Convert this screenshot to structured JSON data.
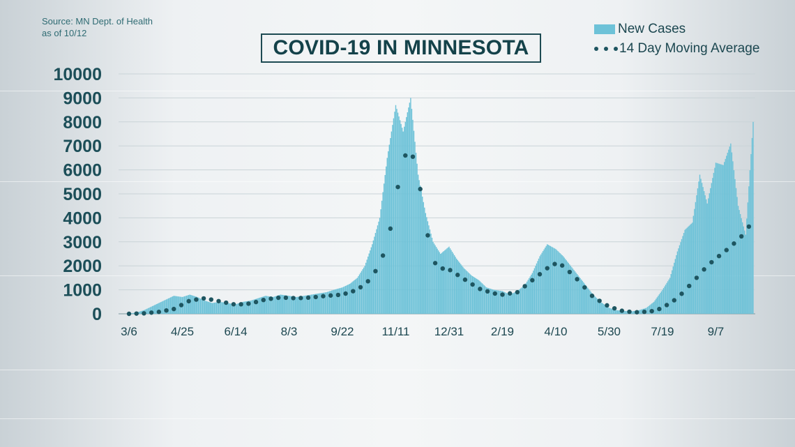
{
  "source_lines": [
    "Source: MN Dept. of Health",
    "as of 10/12"
  ],
  "chart_data": {
    "type": "bar",
    "title": "COVID-19 IN MINNESOTA",
    "xlabel": "",
    "ylabel": "",
    "ylim": [
      0,
      10000
    ],
    "yticks": [
      0,
      1000,
      2000,
      3000,
      4000,
      5000,
      6000,
      7000,
      8000,
      9000,
      10000
    ],
    "xtick_labels": [
      "3/6",
      "4/25",
      "6/14",
      "8/3",
      "9/22",
      "11/11",
      "12/31",
      "2/19",
      "4/10",
      "5/30",
      "7/19",
      "9/7"
    ],
    "grid": true,
    "legend_position": "top-right",
    "series": [
      {
        "name": "New Cases",
        "type": "bar",
        "color": "#6dc2d8",
        "x": [
          "3/6",
          "3/13",
          "3/20",
          "3/27",
          "4/3",
          "4/10",
          "4/17",
          "4/25",
          "5/2",
          "5/9",
          "5/16",
          "5/23",
          "5/30",
          "6/6",
          "6/14",
          "6/21",
          "6/28",
          "7/5",
          "7/12",
          "7/19",
          "7/26",
          "8/3",
          "8/10",
          "8/17",
          "8/24",
          "8/31",
          "9/7",
          "9/14",
          "9/22",
          "9/29",
          "10/6",
          "10/13",
          "10/20",
          "10/27",
          "11/3",
          "11/11",
          "11/18",
          "11/25",
          "12/2",
          "12/9",
          "12/16",
          "12/23",
          "12/31",
          "1/7",
          "1/14",
          "1/21",
          "1/28",
          "2/4",
          "2/11",
          "2/19",
          "2/26",
          "3/5",
          "3/12",
          "3/19",
          "3/26",
          "4/2",
          "4/10",
          "4/17",
          "4/24",
          "5/1",
          "5/8",
          "5/15",
          "5/22",
          "5/30",
          "6/6",
          "6/13",
          "6/20",
          "6/27",
          "7/4",
          "7/11",
          "7/19",
          "7/26",
          "8/2",
          "8/9",
          "8/16",
          "8/23",
          "8/30",
          "9/7",
          "9/14",
          "9/21",
          "9/28",
          "10/5",
          "10/12"
        ],
        "values": [
          10,
          50,
          150,
          300,
          450,
          600,
          750,
          700,
          800,
          700,
          550,
          450,
          500,
          450,
          400,
          500,
          550,
          650,
          750,
          700,
          800,
          750,
          700,
          750,
          800,
          850,
          900,
          1000,
          1100,
          1250,
          1500,
          2000,
          2900,
          4000,
          6500,
          8700,
          7600,
          9000,
          5800,
          4200,
          3000,
          2500,
          2800,
          2300,
          1900,
          1600,
          1400,
          1100,
          1000,
          950,
          800,
          950,
          1200,
          1700,
          2400,
          2900,
          2700,
          2400,
          2000,
          1600,
          1200,
          800,
          500,
          250,
          150,
          120,
          100,
          150,
          250,
          500,
          1000,
          1500,
          2600,
          3500,
          3800,
          5800,
          4600,
          6300,
          6200,
          7100,
          4500,
          3300,
          8000
        ]
      },
      {
        "name": "14 Day Moving Average",
        "type": "line",
        "style": "dotted",
        "color": "#1e5560",
        "x": [
          "3/6",
          "3/20",
          "4/3",
          "4/17",
          "5/2",
          "5/16",
          "5/30",
          "6/14",
          "6/28",
          "7/12",
          "7/26",
          "8/10",
          "8/24",
          "9/7",
          "9/22",
          "10/6",
          "10/20",
          "11/3",
          "11/11",
          "11/18",
          "11/25",
          "12/2",
          "12/9",
          "12/16",
          "12/23",
          "12/31",
          "1/14",
          "1/28",
          "2/11",
          "2/19",
          "3/5",
          "3/19",
          "4/2",
          "4/10",
          "4/17",
          "5/1",
          "5/15",
          "5/30",
          "6/13",
          "6/27",
          "7/11",
          "7/19",
          "8/2",
          "8/16",
          "8/30",
          "9/7",
          "9/21",
          "10/5",
          "10/12"
        ],
        "values": [
          0,
          20,
          80,
          200,
          550,
          650,
          520,
          380,
          430,
          600,
          680,
          650,
          680,
          750,
          800,
          1000,
          1500,
          2800,
          4800,
          6500,
          6850,
          5800,
          3700,
          2200,
          1900,
          1850,
          1450,
          1050,
          850,
          800,
          900,
          1400,
          1900,
          2100,
          2000,
          1400,
          700,
          300,
          100,
          60,
          120,
          250,
          650,
          1300,
          2000,
          2300,
          2800,
          3400,
          3950
        ]
      }
    ]
  }
}
